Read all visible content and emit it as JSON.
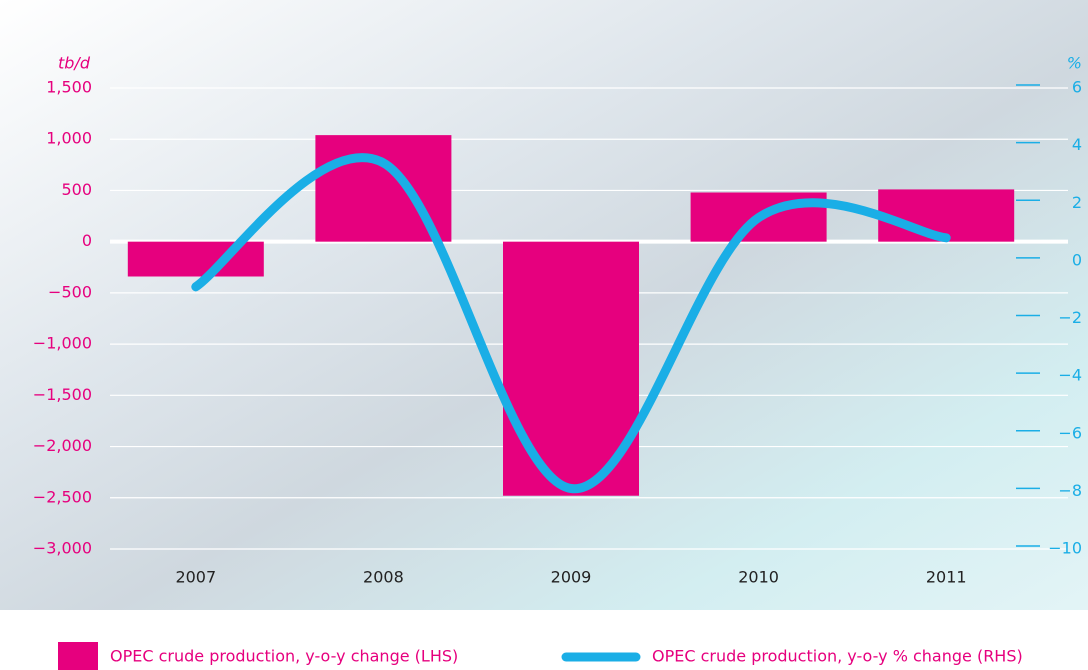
{
  "chart_data": {
    "type": "bar-line",
    "y_label": "tb/d",
    "y2_label": "%",
    "categories": [
      "2007",
      "2008",
      "2009",
      "2010",
      "2011"
    ],
    "series": [
      {
        "name": "OPEC crude production, y-o-y change (LHS)",
        "type": "bar",
        "color": "#e6007e",
        "values": [
          -340,
          1040,
          -2480,
          480,
          510
        ]
      },
      {
        "name": "OPEC crude production, y-o-y % change (RHS)",
        "type": "line",
        "axis": "y2",
        "color": "#1aaee6",
        "values": [
          -0.9,
          3.4,
          -7.9,
          1.5,
          0.8
        ]
      }
    ],
    "ylim": [
      -3000,
      1500
    ],
    "yticks": [
      {
        "value": -3000,
        "label": "−3,000"
      },
      {
        "value": -2500,
        "label": "−2,500"
      },
      {
        "value": -2000,
        "label": "−2,000"
      },
      {
        "value": -1500,
        "label": "−1,500"
      },
      {
        "value": -1000,
        "label": "−1,000"
      },
      {
        "value": -500,
        "label": "−500"
      },
      0,
      500,
      {
        "value": 1000,
        "label": "1,000"
      },
      {
        "value": 1500,
        "label": "1,500"
      }
    ],
    "y2lim": [
      -10,
      6
    ],
    "y2ticks": [
      {
        "value": -10,
        "label": "−10"
      },
      {
        "value": -8,
        "label": "−8"
      },
      {
        "value": -6,
        "label": "−6"
      },
      {
        "value": -4,
        "label": "−4"
      },
      {
        "value": -2,
        "label": "−2"
      },
      0,
      2,
      4,
      6
    ],
    "grid": true
  }
}
